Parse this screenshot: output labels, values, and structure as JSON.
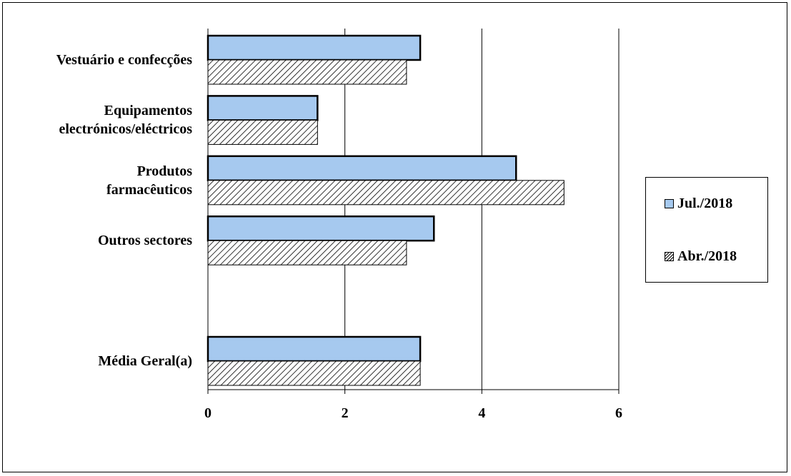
{
  "chart_data": {
    "type": "bar",
    "orientation": "horizontal",
    "categories": [
      "Vestuário e confecções",
      "Equipamentos\nelectrónicos/eléctricos",
      "Produtos\nfarmacêuticos",
      "Outros sectores",
      "Média Geral(a)"
    ],
    "series": [
      {
        "name": "Jul./2018",
        "values": [
          3.1,
          1.6,
          4.5,
          3.3,
          3.1
        ],
        "color": "#a6c9ef",
        "fill": "solid"
      },
      {
        "name": "Abr./2018",
        "values": [
          2.9,
          1.6,
          5.2,
          2.9,
          3.1
        ],
        "color": "#000000",
        "fill": "diagonal-hatch"
      }
    ],
    "xlim": [
      0,
      6
    ],
    "xticks": [
      "0",
      "2",
      "4",
      "6"
    ],
    "grid": "vertical",
    "legend": "right"
  }
}
